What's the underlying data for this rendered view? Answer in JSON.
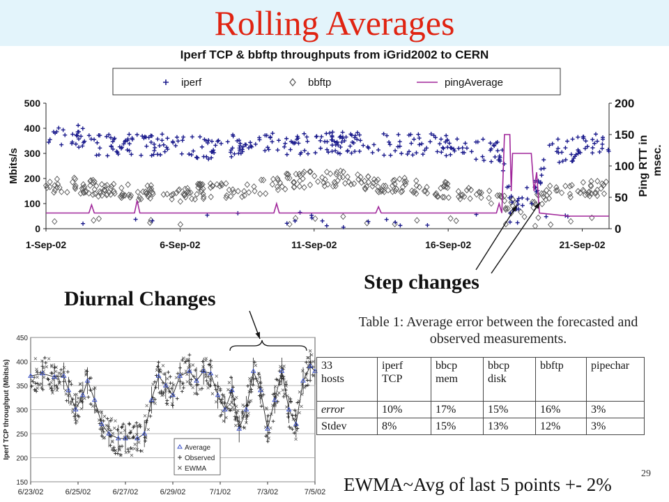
{
  "slide": {
    "title": "Rolling Averages",
    "number": "29",
    "step_callout": "Step changes",
    "diurnal_callout": "Diurnal Changes",
    "ewma_note": "EWMA~Avg of last 5 points +- 2%"
  },
  "table": {
    "caption_line1": "Table 1: Average error between the forecasted and",
    "caption_line2": "observed measurements.",
    "header": [
      "33\nhosts",
      "iperf\nTCP",
      "bbcp\nmem",
      "bbcp\ndisk",
      "bbftp",
      "pipechar"
    ],
    "rows": [
      [
        "error",
        "10%",
        "17%",
        "15%",
        "16%",
        "3%"
      ],
      [
        "Stdev",
        "8%",
        "15%",
        "13%",
        "12%",
        "3%"
      ]
    ]
  },
  "chart_data": [
    {
      "type": "scatter",
      "title": "Iperf TCP & bbftp throughputs from iGrid2002 to CERN",
      "ylabel": "Mbits/s",
      "y2label": "Ping RTT in msec.",
      "ylim": [
        0,
        500
      ],
      "y2lim": [
        0,
        200
      ],
      "yticks": [
        0,
        100,
        200,
        300,
        400,
        500
      ],
      "y2ticks": [
        0,
        50,
        100,
        150,
        200
      ],
      "xlim": [
        0,
        21
      ],
      "xticks": [
        {
          "x": 0,
          "label": "1-Sep-02"
        },
        {
          "x": 5,
          "label": "6-Sep-02"
        },
        {
          "x": 10,
          "label": "11-Sep-02"
        },
        {
          "x": 15,
          "label": "16-Sep-02"
        },
        {
          "x": 20,
          "label": "21-Sep-02"
        }
      ],
      "legend_position": "top",
      "colors": {
        "iperf": "#1a1a8c",
        "bbftp": "#555555",
        "pingAverage": "#a0269a"
      },
      "series": [
        {
          "name": "iperf",
          "marker": "plus",
          "profile": [
            [
              0,
              340
            ],
            [
              1,
              380
            ],
            [
              2,
              330
            ],
            [
              3,
              340
            ],
            [
              4,
              330
            ],
            [
              5,
              340
            ],
            [
              6,
              320
            ],
            [
              7,
              330
            ],
            [
              8,
              335
            ],
            [
              9,
              340
            ],
            [
              10,
              340
            ],
            [
              11,
              340
            ],
            [
              12,
              350
            ],
            [
              13,
              330
            ],
            [
              14,
              335
            ],
            [
              15,
              330
            ],
            [
              16,
              320
            ],
            [
              17,
              300
            ],
            [
              17.3,
              110
            ],
            [
              18.2,
              140
            ],
            [
              18.8,
              330
            ],
            [
              19.3,
              300
            ],
            [
              20,
              330
            ],
            [
              21,
              340
            ]
          ],
          "spread": 45,
          "count": 420
        },
        {
          "name": "bbftp",
          "marker": "diamond",
          "profile": [
            [
              0,
              175
            ],
            [
              1,
              175
            ],
            [
              2,
              160
            ],
            [
              3,
              145
            ],
            [
              4,
              150
            ],
            [
              5,
              140
            ],
            [
              6,
              150
            ],
            [
              7,
              155
            ],
            [
              8,
              165
            ],
            [
              9,
              190
            ],
            [
              10,
              200
            ],
            [
              11,
              200
            ],
            [
              12,
              180
            ],
            [
              13,
              175
            ],
            [
              14,
              165
            ],
            [
              15,
              155
            ],
            [
              16,
              140
            ],
            [
              17,
              110
            ],
            [
              17.5,
              80
            ],
            [
              18.2,
              110
            ],
            [
              19,
              150
            ],
            [
              20,
              160
            ],
            [
              21,
              165
            ]
          ],
          "spread": 32,
          "count": 380
        },
        {
          "name": "pingAverage",
          "marker": "line",
          "points": [
            [
              0,
              25
            ],
            [
              1.6,
              25
            ],
            [
              1.7,
              38
            ],
            [
              1.8,
              25
            ],
            [
              3.3,
              25
            ],
            [
              3.4,
              45
            ],
            [
              3.5,
              25
            ],
            [
              4,
              25
            ],
            [
              8.5,
              25
            ],
            [
              8.6,
              40
            ],
            [
              8.7,
              25
            ],
            [
              12.3,
              25
            ],
            [
              12.4,
              35
            ],
            [
              12.5,
              25
            ],
            [
              16.8,
              25
            ],
            [
              16.9,
              40
            ],
            [
              17,
              25
            ],
            [
              17.1,
              150
            ],
            [
              17.3,
              150
            ],
            [
              17.35,
              60
            ],
            [
              17.4,
              120
            ],
            [
              17.6,
              120
            ],
            [
              17.8,
              120
            ],
            [
              18.1,
              120
            ],
            [
              18.2,
              60
            ],
            [
              18.3,
              90
            ],
            [
              18.4,
              25
            ],
            [
              19.5,
              20
            ],
            [
              20,
              20
            ],
            [
              21,
              20
            ]
          ]
        }
      ]
    },
    {
      "type": "line",
      "ylabel": "Iperf TCP throughput (Mbits/s)",
      "ylim": [
        150,
        450
      ],
      "yticks": [
        150,
        200,
        250,
        300,
        350,
        400,
        450
      ],
      "xlim": [
        0,
        12
      ],
      "xticks": [
        {
          "x": 0,
          "label": "6/23/02"
        },
        {
          "x": 2,
          "label": "6/25/02"
        },
        {
          "x": 4,
          "label": "6/27/02"
        },
        {
          "x": 6,
          "label": "6/29/02"
        },
        {
          "x": 8,
          "label": "7/1/02"
        },
        {
          "x": 10,
          "label": "7/3/02"
        },
        {
          "x": 12,
          "label": "7/5/02"
        }
      ],
      "legend_position": "bottom-right",
      "legend": [
        "Average",
        "Observed",
        "EWMA"
      ],
      "colors": {
        "Average": "#3a50c8",
        "Observed": "#222222",
        "EWMA": "#555555"
      },
      "series": [
        {
          "name": "Average",
          "marker": "triangle",
          "points": [
            [
              0,
              370
            ],
            [
              0.5,
              375
            ],
            [
              1,
              368
            ],
            [
              1.4,
              370
            ],
            [
              1.6,
              340
            ],
            [
              1.9,
              300
            ],
            [
              2.2,
              330
            ],
            [
              2.4,
              360
            ],
            [
              2.7,
              320
            ],
            [
              3,
              270
            ],
            [
              3.3,
              250
            ],
            [
              3.7,
              240
            ],
            [
              4,
              240
            ],
            [
              4.5,
              240
            ],
            [
              4.8,
              250
            ],
            [
              5.1,
              320
            ],
            [
              5.4,
              370
            ],
            [
              5.7,
              350
            ],
            [
              6,
              330
            ],
            [
              6.3,
              370
            ],
            [
              6.7,
              380
            ],
            [
              7,
              360
            ],
            [
              7.3,
              380
            ],
            [
              7.6,
              375
            ],
            [
              7.9,
              330
            ],
            [
              8.2,
              300
            ],
            [
              8.5,
              340
            ],
            [
              8.8,
              260
            ],
            [
              9.1,
              300
            ],
            [
              9.4,
              380
            ],
            [
              9.7,
              340
            ],
            [
              10,
              260
            ],
            [
              10.3,
              320
            ],
            [
              10.6,
              380
            ],
            [
              10.9,
              300
            ],
            [
              11.2,
              270
            ],
            [
              11.5,
              360
            ],
            [
              11.8,
              390
            ],
            [
              12,
              380
            ]
          ]
        }
      ]
    }
  ]
}
